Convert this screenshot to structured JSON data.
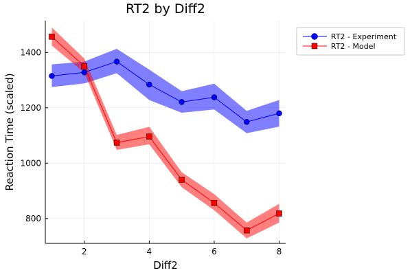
{
  "chart_data": {
    "type": "line",
    "title": "RT2 by Diff2",
    "xlabel": "Diff2",
    "ylabel": "Reaction Time (scaled)",
    "xlim": [
      0.8,
      8.2
    ],
    "ylim": [
      710,
      1515
    ],
    "xticks": [
      2,
      4,
      6,
      8
    ],
    "yticks": [
      800,
      1000,
      1200,
      1400
    ],
    "grid": true,
    "legend_position": "top-right",
    "x": [
      1,
      2,
      3,
      4,
      5,
      6,
      7,
      8
    ],
    "series": [
      {
        "name": "RT2 - Experiment",
        "color": "#0000ff",
        "marker": "circle",
        "values": [
          1315,
          1328,
          1367,
          1284,
          1221,
          1238,
          1149,
          1180
        ],
        "lower": [
          1275,
          1288,
          1325,
          1228,
          1182,
          1194,
          1108,
          1132
        ],
        "upper": [
          1357,
          1367,
          1413,
          1338,
          1260,
          1287,
          1189,
          1228
        ]
      },
      {
        "name": "RT2 - Model",
        "color": "#ff0000",
        "marker": "square",
        "values": [
          1457,
          1350,
          1074,
          1096,
          940,
          856,
          757,
          818
        ],
        "lower": [
          1425,
          1327,
          1048,
          1068,
          913,
          830,
          728,
          785
        ],
        "upper": [
          1490,
          1378,
          1102,
          1131,
          967,
          888,
          785,
          853
        ]
      }
    ]
  }
}
